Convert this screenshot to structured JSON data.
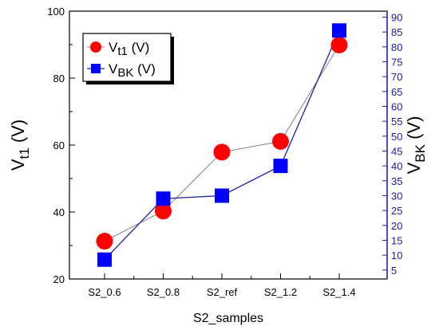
{
  "chart_data": {
    "type": "line",
    "categories": [
      "S2_0.6",
      "S2_0.8",
      "S2_ref",
      "S2_1.2",
      "S2_1.4"
    ],
    "xlabel": "S2_samples",
    "ylabel_left": {
      "main": "V",
      "sub": "t1",
      "unit": " (V)"
    },
    "ylabel_right": {
      "main": "V",
      "sub": "BK",
      "unit": " (V)"
    },
    "ylim_left": [
      20,
      100
    ],
    "yticks_left": [
      20,
      40,
      60,
      80,
      100
    ],
    "ylim_right": [
      2,
      92
    ],
    "yticks_right": [
      5,
      10,
      15,
      20,
      25,
      30,
      35,
      40,
      45,
      50,
      55,
      60,
      65,
      70,
      75,
      80,
      85,
      90
    ],
    "series": [
      {
        "name": {
          "main": "V",
          "sub": "t1",
          "unit": " (V)"
        },
        "axis": "left",
        "values": [
          31.3,
          40.3,
          57.9,
          61.1,
          89.9
        ],
        "marker": "circle",
        "color": "#ff0000",
        "line_color": "#808080"
      },
      {
        "name": {
          "main": "V",
          "sub": "BK",
          "unit": " (V)"
        },
        "axis": "right",
        "values": [
          8.5,
          29,
          30,
          40,
          85.5
        ],
        "marker": "square",
        "color": "#0000ff",
        "line_color": "#1f1fa8"
      }
    ],
    "legend_position": "top-left",
    "grid": false
  }
}
